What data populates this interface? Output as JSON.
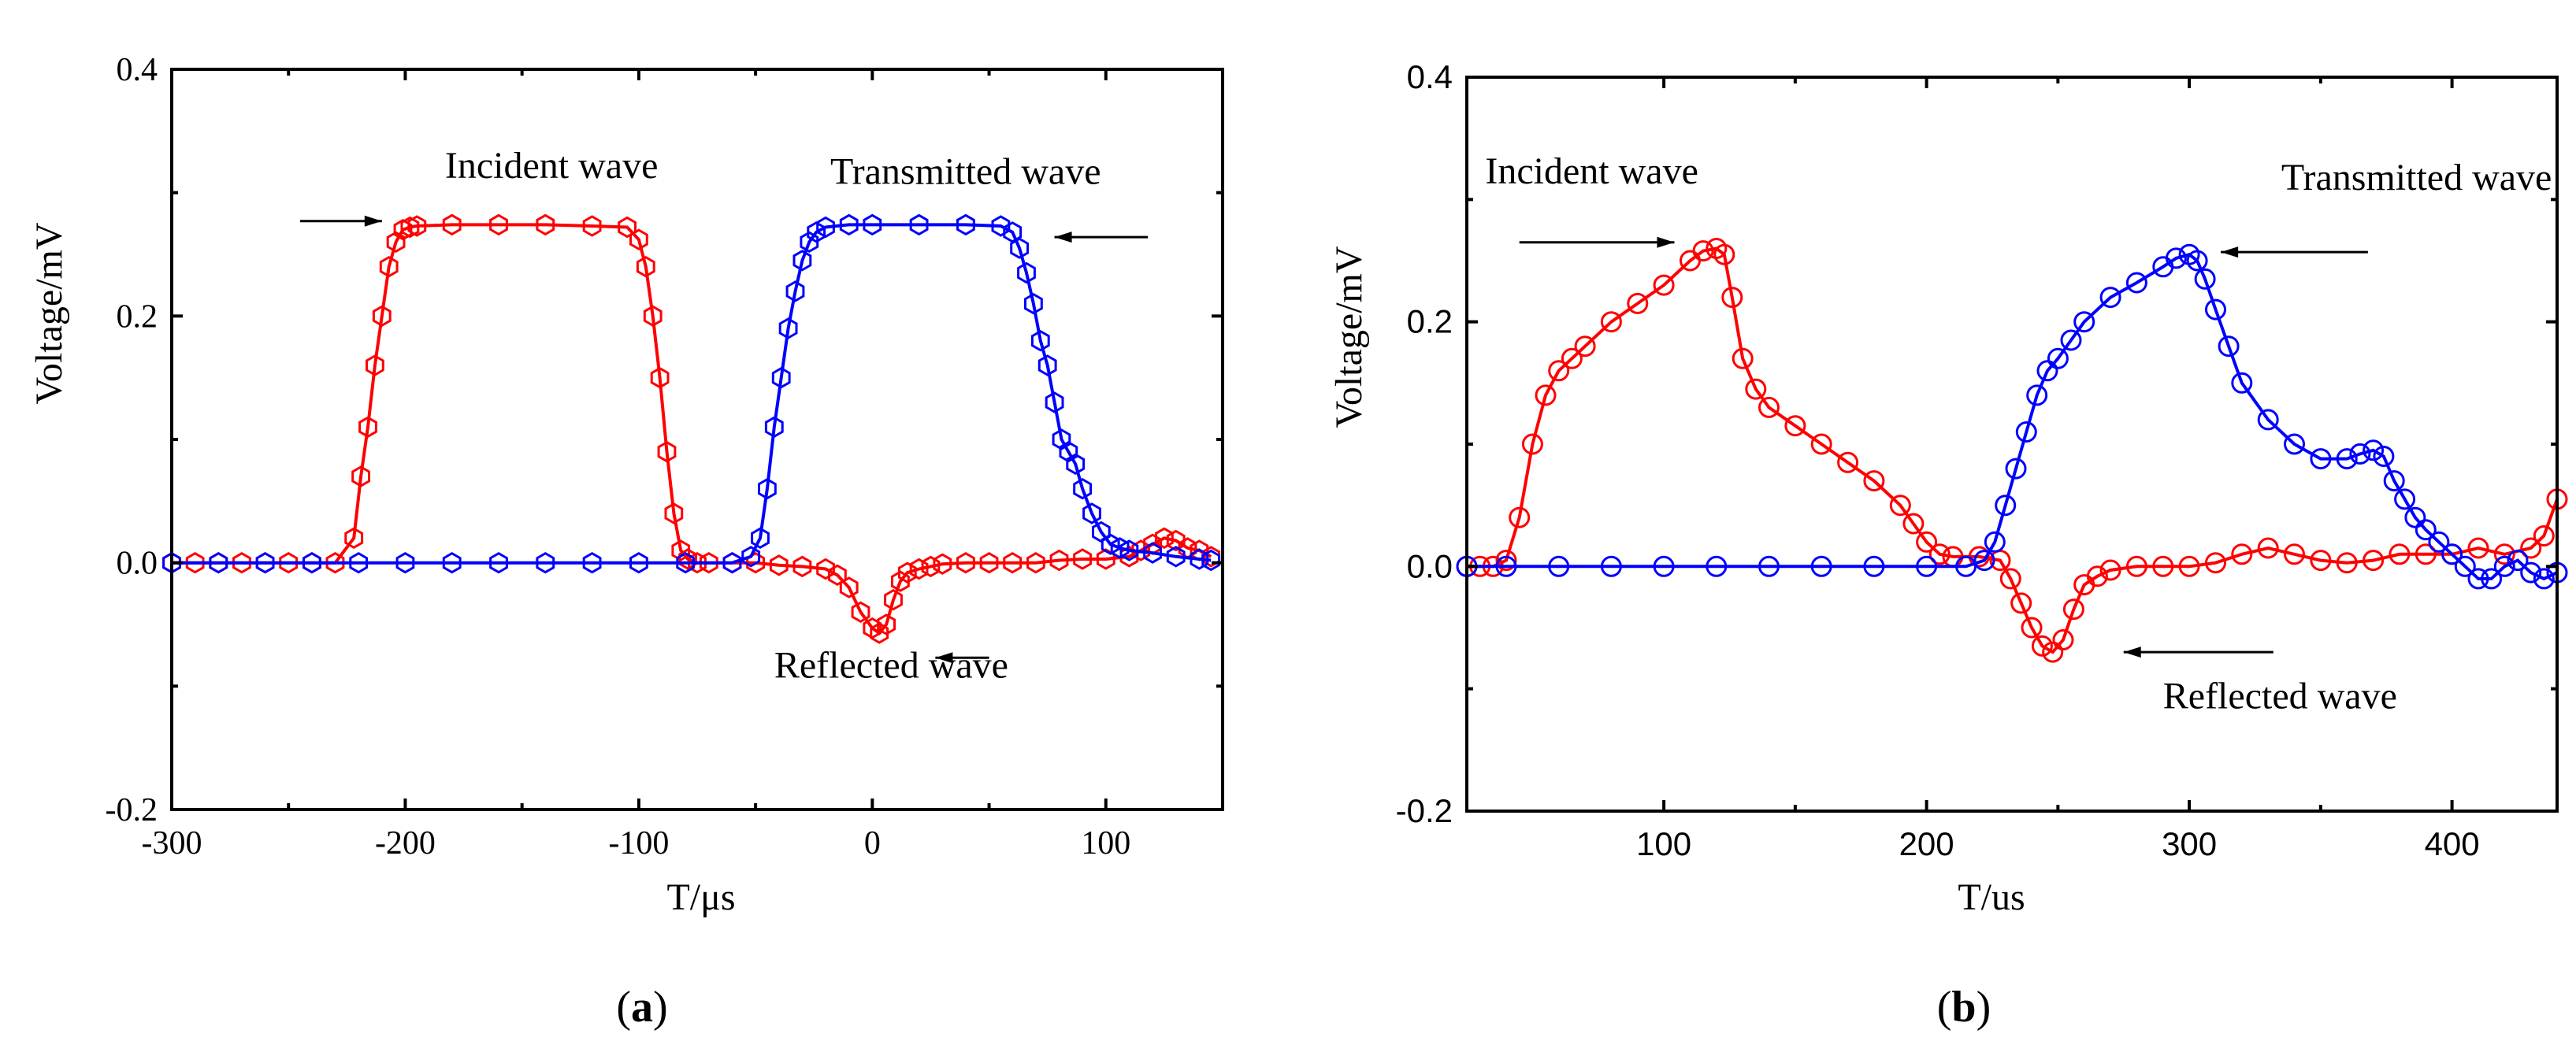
{
  "chart_data": [
    {
      "type": "scatter",
      "panel_label": {
        "open": "(",
        "letter": "a",
        "close": ")"
      },
      "xlabel": "T/μs",
      "ylabel": "Voltage/mV",
      "xlim": [
        -300,
        150
      ],
      "ylim": [
        -0.2,
        0.4
      ],
      "x_ticks": [
        -300,
        -200,
        -100,
        0,
        100
      ],
      "x_tick_labels": [
        "-300",
        "-200",
        "-100",
        "0",
        "100"
      ],
      "y_ticks": [
        -0.2,
        0,
        0.2,
        0.4
      ],
      "y_tick_labels": [
        "-0.2",
        "0.0",
        "0.2",
        "0.4"
      ],
      "grid": false,
      "marker": "hexagon",
      "annotations": [
        {
          "text": "Incident wave",
          "at": [
            -183,
            0.312
          ],
          "arrow_from": [
            -245,
            0.277
          ],
          "arrow_to": [
            -210,
            0.277
          ]
        },
        {
          "text": "Transmitted wave",
          "at": [
            -18,
            0.307
          ],
          "arrow_from": [
            118,
            0.264
          ],
          "arrow_to": [
            78,
            0.264
          ]
        },
        {
          "text": "Reflected wave",
          "at": [
            -42,
            -0.093
          ],
          "arrow_from": [
            50,
            -0.077
          ],
          "arrow_to": [
            27,
            -0.077
          ]
        }
      ],
      "series": [
        {
          "color": "#ff0000",
          "x": [
            -300,
            -290,
            -280,
            -270,
            -260,
            -250,
            -240,
            -230,
            -222,
            -219,
            -216,
            -213,
            -210,
            -207,
            -204,
            -201,
            -198,
            -195,
            -180,
            -160,
            -140,
            -120,
            -105,
            -100,
            -97,
            -94,
            -91,
            -88,
            -85,
            -82,
            -79,
            -75,
            -70,
            -60,
            -50,
            -40,
            -30,
            -20,
            -15,
            -10,
            -5,
            0,
            3,
            6,
            9,
            12,
            15,
            20,
            25,
            30,
            40,
            50,
            60,
            70,
            80,
            90,
            100,
            110,
            115,
            120,
            125,
            130,
            135,
            140,
            145
          ],
          "y": [
            0,
            0,
            0,
            0,
            0,
            0,
            0,
            0,
            0.02,
            0.07,
            0.11,
            0.16,
            0.2,
            0.24,
            0.26,
            0.27,
            0.272,
            0.273,
            0.274,
            0.274,
            0.274,
            0.273,
            0.272,
            0.262,
            0.24,
            0.2,
            0.15,
            0.09,
            0.04,
            0.01,
            0.003,
            0,
            0,
            0,
            0,
            -0.002,
            -0.003,
            -0.005,
            -0.01,
            -0.02,
            -0.04,
            -0.053,
            -0.057,
            -0.05,
            -0.03,
            -0.015,
            -0.008,
            -0.005,
            -0.003,
            -0.001,
            0,
            0,
            0,
            0,
            0.002,
            0.003,
            0.003,
            0.005,
            0.01,
            0.015,
            0.02,
            0.018,
            0.012,
            0.01,
            0.005
          ]
        },
        {
          "color": "#0000ff",
          "x": [
            -300,
            -280,
            -260,
            -240,
            -220,
            -200,
            -180,
            -160,
            -140,
            -120,
            -100,
            -80,
            -60,
            -52,
            -48,
            -45,
            -42,
            -39,
            -36,
            -33,
            -30,
            -27,
            -24,
            -20,
            -10,
            0,
            20,
            40,
            55,
            60,
            63,
            66,
            69,
            72,
            75,
            78,
            81,
            84,
            87,
            90,
            94,
            98,
            102,
            106,
            110,
            120,
            130,
            140,
            145
          ],
          "y": [
            0,
            0,
            0,
            0,
            0,
            0,
            0,
            0,
            0,
            0,
            0,
            0,
            0,
            0.005,
            0.02,
            0.06,
            0.11,
            0.15,
            0.19,
            0.22,
            0.245,
            0.26,
            0.268,
            0.272,
            0.274,
            0.274,
            0.274,
            0.274,
            0.273,
            0.268,
            0.255,
            0.235,
            0.21,
            0.18,
            0.16,
            0.13,
            0.1,
            0.09,
            0.08,
            0.06,
            0.04,
            0.025,
            0.015,
            0.012,
            0.01,
            0.008,
            0.005,
            0.003,
            0.002
          ]
        }
      ]
    },
    {
      "type": "scatter",
      "panel_label": {
        "open": "(",
        "letter": "b",
        "close": ")"
      },
      "xlabel": "T/us",
      "ylabel": "Voltage/mV",
      "xlim": [
        25,
        440
      ],
      "ylim": [
        -0.2,
        0.4
      ],
      "x_ticks": [
        100,
        200,
        300,
        400
      ],
      "x_tick_labels": [
        "100",
        "200",
        "300",
        "400"
      ],
      "y_ticks": [
        -0.2,
        0,
        0.2,
        0.4
      ],
      "y_tick_labels": [
        "-0.2",
        "0.0",
        "0.2",
        "0.4"
      ],
      "grid": false,
      "marker": "circle",
      "annotations": [
        {
          "text": "Incident wave",
          "at": [
            32,
            0.313
          ],
          "arrow_from": [
            45,
            0.265
          ],
          "arrow_to": [
            104,
            0.265
          ]
        },
        {
          "text": "Transmitted wave",
          "at": [
            335,
            0.308
          ],
          "arrow_from": [
            368,
            0.257
          ],
          "arrow_to": [
            312,
            0.257
          ]
        },
        {
          "text": "Reflected wave",
          "at": [
            290,
            -0.116
          ],
          "arrow_from": [
            332,
            -0.07
          ],
          "arrow_to": [
            275,
            -0.07
          ]
        }
      ],
      "series": [
        {
          "color": "#ff0000",
          "x": [
            25,
            30,
            35,
            40,
            45,
            50,
            55,
            60,
            65,
            70,
            80,
            90,
            100,
            110,
            115,
            120,
            123,
            126,
            130,
            135,
            140,
            150,
            160,
            170,
            180,
            190,
            195,
            200,
            205,
            210,
            220,
            228,
            232,
            236,
            240,
            244,
            248,
            252,
            256,
            260,
            265,
            270,
            280,
            290,
            300,
            310,
            320,
            330,
            340,
            350,
            360,
            370,
            380,
            390,
            400,
            410,
            420,
            430,
            435,
            440
          ],
          "y": [
            0,
            0,
            0,
            0.005,
            0.04,
            0.1,
            0.14,
            0.16,
            0.17,
            0.18,
            0.2,
            0.215,
            0.23,
            0.25,
            0.258,
            0.26,
            0.255,
            0.22,
            0.17,
            0.145,
            0.13,
            0.115,
            0.1,
            0.085,
            0.07,
            0.05,
            0.035,
            0.02,
            0.01,
            0.008,
            0.008,
            0.005,
            -0.01,
            -0.03,
            -0.05,
            -0.065,
            -0.07,
            -0.06,
            -0.035,
            -0.015,
            -0.008,
            -0.003,
            0,
            0,
            0,
            0.003,
            0.01,
            0.015,
            0.01,
            0.005,
            0.003,
            0.005,
            0.01,
            0.01,
            0.01,
            0.015,
            0.01,
            0.015,
            0.025,
            0.055
          ]
        },
        {
          "color": "#0000ff",
          "x": [
            25,
            40,
            60,
            80,
            100,
            120,
            140,
            160,
            180,
            200,
            215,
            222,
            226,
            230,
            234,
            238,
            242,
            246,
            250,
            255,
            260,
            270,
            280,
            290,
            295,
            300,
            303,
            306,
            310,
            315,
            320,
            330,
            340,
            350,
            360,
            365,
            370,
            374,
            378,
            382,
            386,
            390,
            395,
            400,
            405,
            410,
            415,
            420,
            425,
            430,
            435,
            440
          ],
          "y": [
            0,
            0,
            0,
            0,
            0,
            0,
            0,
            0,
            0,
            0,
            0,
            0.005,
            0.02,
            0.05,
            0.08,
            0.11,
            0.14,
            0.16,
            0.17,
            0.185,
            0.2,
            0.22,
            0.232,
            0.245,
            0.252,
            0.255,
            0.25,
            0.235,
            0.21,
            0.18,
            0.15,
            0.12,
            0.1,
            0.088,
            0.088,
            0.092,
            0.095,
            0.09,
            0.07,
            0.055,
            0.04,
            0.03,
            0.02,
            0.01,
            0.0,
            -0.01,
            -0.01,
            0.0,
            0.005,
            -0.005,
            -0.01,
            -0.005
          ]
        }
      ]
    }
  ]
}
